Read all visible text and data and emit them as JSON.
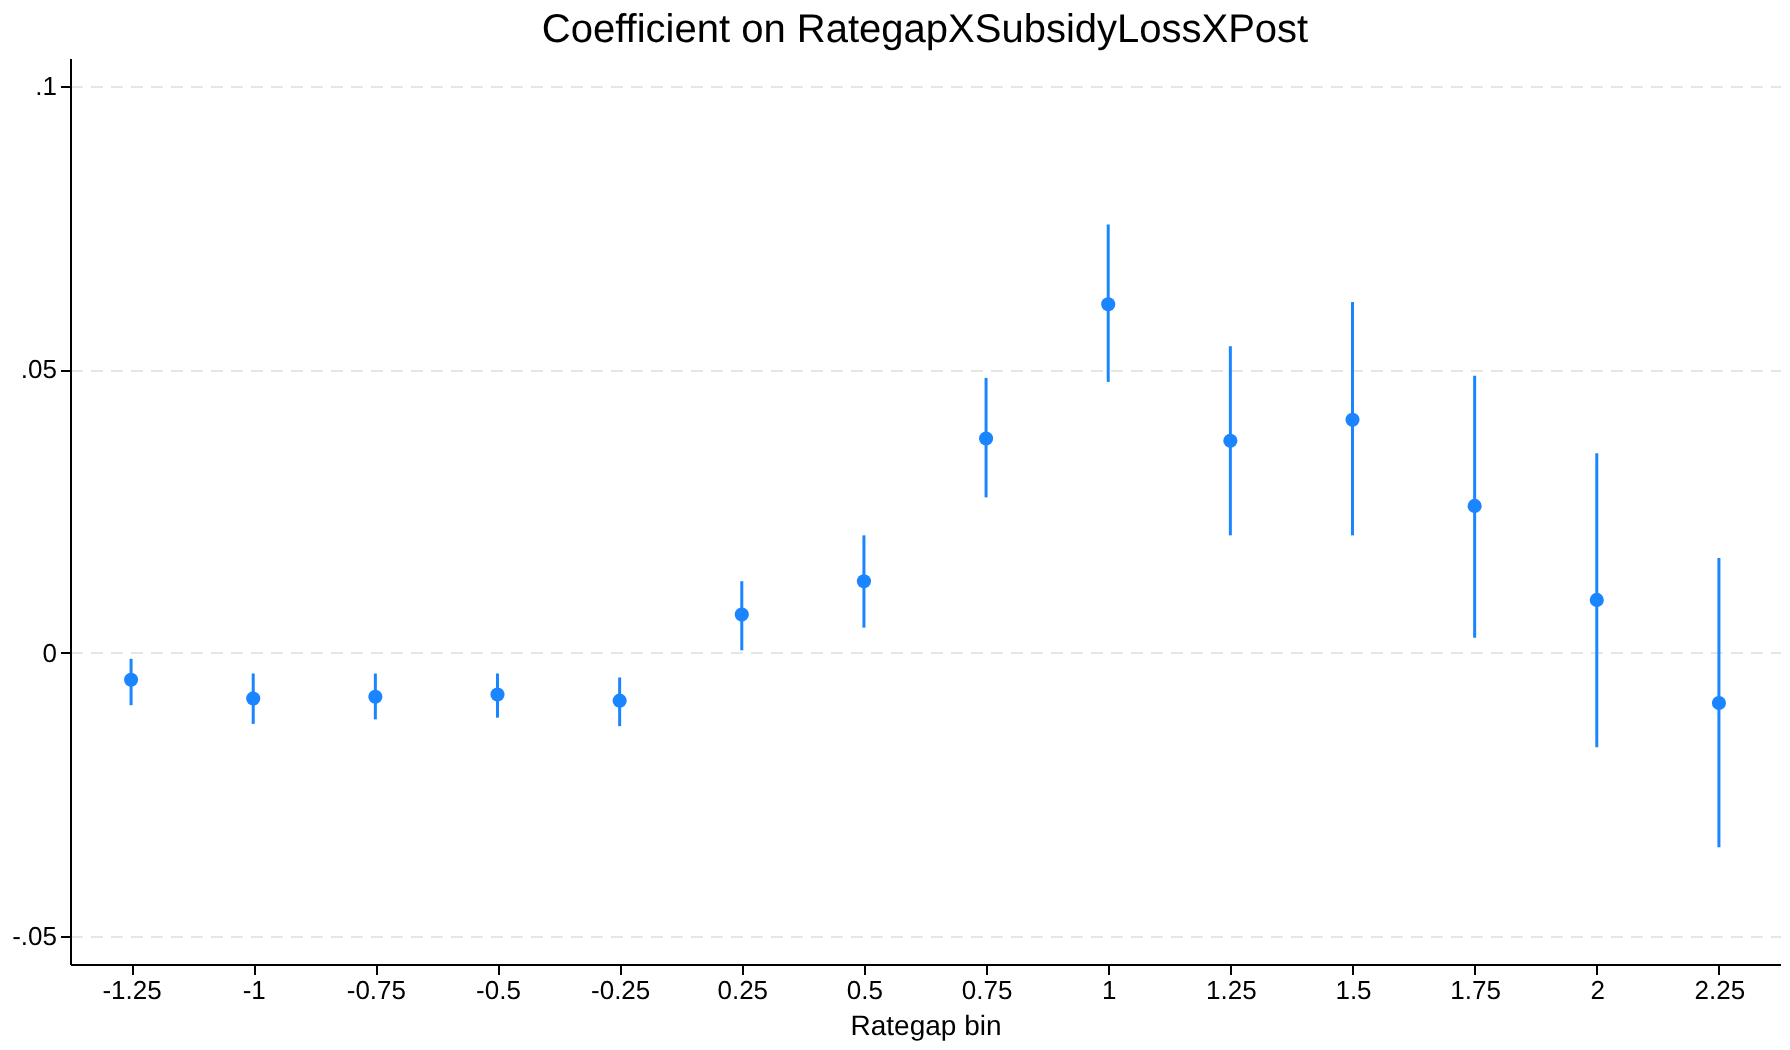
{
  "chart_data": {
    "type": "scatter",
    "title": "Coefficient on RategapXSubsidyLossXPost",
    "xlabel": "Rategap bin",
    "categories": [
      "-1.25",
      "-1",
      "-0.75",
      "-0.5",
      "-0.25",
      "0.25",
      "0.5",
      "0.75",
      "1",
      "1.25",
      "1.5",
      "1.75",
      "2",
      "2.25"
    ],
    "values": [
      -0.0048,
      -0.0081,
      -0.0078,
      -0.0074,
      -0.0085,
      0.0067,
      0.0126,
      0.0378,
      0.0615,
      0.0374,
      0.0411,
      0.0259,
      0.0093,
      -0.0089
    ],
    "errors": [
      [
        -0.0093,
        -0.0011
      ],
      [
        -0.0126,
        -0.0037
      ],
      [
        -0.0118,
        -0.0037
      ],
      [
        -0.0115,
        -0.0037
      ],
      [
        -0.013,
        -0.0044
      ],
      [
        0.0004,
        0.0126
      ],
      [
        0.0044,
        0.0207
      ],
      [
        0.0274,
        0.0485
      ],
      [
        0.0478,
        0.0756
      ],
      [
        0.0207,
        0.0541
      ],
      [
        0.0207,
        0.0619
      ],
      [
        0.0026,
        0.0489
      ],
      [
        -0.0167,
        0.0352
      ],
      [
        -0.0344,
        0.0167
      ]
    ],
    "color": "#1a85ff",
    "marker": "circle",
    "ylim": [
      -0.055,
      0.105
    ],
    "yticks": [
      {
        "value": -0.05,
        "label": "-.05"
      },
      0,
      {
        "value": 0.05,
        "label": ".05"
      },
      {
        "value": 0.1,
        "label": ".1"
      }
    ],
    "grid": "y"
  }
}
